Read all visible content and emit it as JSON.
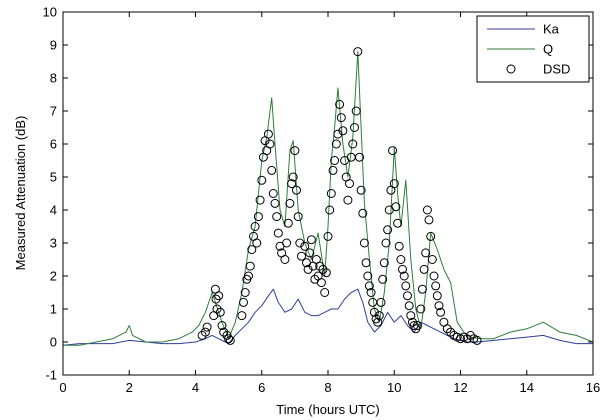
{
  "chart_data": {
    "type": "line",
    "xlabel": "Time (hours UTC)",
    "ylabel": "Measured Attenuation (dB)",
    "xlim": [
      0,
      16
    ],
    "ylim": [
      -1,
      10
    ],
    "xticks": [
      0,
      2,
      4,
      6,
      8,
      10,
      12,
      14,
      16
    ],
    "yticks": [
      -1,
      0,
      1,
      2,
      3,
      4,
      5,
      6,
      7,
      8,
      9,
      10
    ],
    "grid": false,
    "legend_position": "top-right",
    "series": [
      {
        "name": "Ka",
        "style": "line",
        "color": "#2e3f9e",
        "x": [
          0,
          0.5,
          1,
          1.5,
          2,
          2.5,
          3,
          3.5,
          4,
          4.3,
          4.5,
          4.7,
          4.9,
          5.0,
          5.2,
          5.4,
          5.6,
          5.8,
          6.0,
          6.2,
          6.35,
          6.5,
          6.7,
          6.9,
          7.1,
          7.3,
          7.5,
          7.7,
          7.9,
          8.1,
          8.3,
          8.5,
          8.7,
          8.9,
          9.05,
          9.2,
          9.4,
          9.6,
          9.8,
          10.0,
          10.2,
          10.4,
          10.6,
          10.8,
          11.0,
          11.2,
          11.4,
          11.6,
          11.8,
          12.0,
          12.2,
          12.5,
          13.0,
          13.5,
          14.0,
          14.5,
          15.0,
          15.5,
          16.0
        ],
        "y": [
          -0.1,
          -0.05,
          -0.05,
          -0.05,
          0.05,
          0.0,
          -0.05,
          -0.05,
          0.0,
          0.1,
          0.2,
          0.1,
          0.0,
          -0.05,
          0.2,
          0.4,
          0.6,
          0.9,
          1.1,
          1.4,
          1.6,
          1.2,
          0.9,
          1.0,
          1.3,
          0.9,
          0.8,
          0.8,
          0.9,
          1.0,
          1.0,
          1.3,
          1.5,
          1.6,
          1.2,
          0.6,
          0.3,
          0.5,
          0.9,
          0.6,
          0.8,
          0.5,
          0.3,
          0.6,
          0.5,
          0.4,
          0.3,
          0.2,
          0.1,
          0.05,
          0.0,
          0.0,
          0.05,
          0.1,
          0.15,
          0.2,
          0.05,
          -0.05,
          -0.05
        ]
      },
      {
        "name": "Q",
        "style": "line",
        "color": "#2f7d3a",
        "x": [
          0,
          0.5,
          1,
          1.5,
          1.9,
          2.0,
          2.1,
          2.5,
          3,
          3.5,
          3.9,
          4.1,
          4.3,
          4.5,
          4.6,
          4.8,
          5.0,
          5.2,
          5.4,
          5.6,
          5.8,
          6.0,
          6.15,
          6.3,
          6.4,
          6.55,
          6.7,
          6.85,
          6.95,
          7.1,
          7.3,
          7.5,
          7.7,
          7.9,
          8.0,
          8.1,
          8.2,
          8.3,
          8.45,
          8.6,
          8.75,
          8.9,
          9.0,
          9.1,
          9.25,
          9.4,
          9.55,
          9.7,
          9.85,
          10.0,
          10.1,
          10.2,
          10.35,
          10.5,
          10.65,
          10.8,
          10.95,
          11.1,
          11.3,
          11.5,
          11.7,
          11.9,
          12.1,
          12.3,
          12.6,
          13.0,
          13.5,
          14.0,
          14.5,
          15.0,
          15.5,
          16.0
        ],
        "y": [
          -0.1,
          -0.1,
          0.0,
          0.1,
          0.3,
          0.5,
          0.2,
          0.0,
          0.0,
          0.1,
          0.3,
          0.5,
          0.9,
          1.5,
          1.2,
          0.6,
          0.1,
          0.6,
          1.5,
          2.8,
          3.5,
          5.5,
          6.2,
          7.4,
          6.0,
          4.0,
          3.5,
          5.8,
          6.1,
          4.0,
          3.0,
          2.5,
          3.3,
          2.0,
          3.5,
          5.5,
          6.5,
          7.7,
          6.0,
          5.0,
          6.2,
          8.8,
          6.5,
          4.2,
          2.5,
          1.0,
          0.6,
          1.5,
          3.0,
          5.9,
          4.5,
          3.5,
          4.9,
          2.5,
          1.0,
          0.4,
          1.5,
          3.3,
          2.8,
          2.2,
          1.8,
          0.6,
          0.3,
          0.15,
          0.1,
          0.1,
          0.3,
          0.4,
          0.6,
          0.3,
          0.2,
          0.0
        ]
      },
      {
        "name": "DSD",
        "style": "markers",
        "marker": "open-circle",
        "color": "#000000",
        "x": [
          4.2,
          4.3,
          4.35,
          4.55,
          4.6,
          4.62,
          4.65,
          4.7,
          4.75,
          4.8,
          4.85,
          4.95,
          5.0,
          5.05,
          5.4,
          5.45,
          5.5,
          5.55,
          5.6,
          5.65,
          5.7,
          5.75,
          5.8,
          5.85,
          5.9,
          5.95,
          6.0,
          6.05,
          6.1,
          6.15,
          6.2,
          6.25,
          6.3,
          6.35,
          6.4,
          6.45,
          6.5,
          6.55,
          6.6,
          6.7,
          6.75,
          6.8,
          6.85,
          6.9,
          6.95,
          7.0,
          7.05,
          7.1,
          7.15,
          7.2,
          7.3,
          7.35,
          7.4,
          7.45,
          7.5,
          7.55,
          7.6,
          7.65,
          7.7,
          7.75,
          7.8,
          7.85,
          7.9,
          7.95,
          8.0,
          8.05,
          8.1,
          8.15,
          8.2,
          8.25,
          8.3,
          8.35,
          8.4,
          8.45,
          8.5,
          8.55,
          8.6,
          8.65,
          8.7,
          8.75,
          8.8,
          8.85,
          8.9,
          8.95,
          9.0,
          9.05,
          9.1,
          9.15,
          9.2,
          9.25,
          9.3,
          9.35,
          9.4,
          9.45,
          9.5,
          9.55,
          9.6,
          9.65,
          9.7,
          9.75,
          9.8,
          9.85,
          9.9,
          9.95,
          10.0,
          10.05,
          10.1,
          10.15,
          10.2,
          10.25,
          10.3,
          10.35,
          10.4,
          10.45,
          10.5,
          10.55,
          10.6,
          10.65,
          10.7,
          10.8,
          10.85,
          10.9,
          10.95,
          11.0,
          11.05,
          11.1,
          11.15,
          11.2,
          11.25,
          11.3,
          11.35,
          11.4,
          11.5,
          11.6,
          11.7,
          11.8,
          11.9,
          12.0,
          12.1,
          12.2,
          12.3,
          12.4,
          12.5
        ],
        "y": [
          0.2,
          0.3,
          0.45,
          0.8,
          1.6,
          1.3,
          1.0,
          1.4,
          0.9,
          0.5,
          0.3,
          0.2,
          0.1,
          0.05,
          0.8,
          1.2,
          1.5,
          1.9,
          2.0,
          2.3,
          2.8,
          3.2,
          3.5,
          3.0,
          3.8,
          4.3,
          4.9,
          5.6,
          6.1,
          5.8,
          6.3,
          6.0,
          5.2,
          4.5,
          4.2,
          3.8,
          3.3,
          2.9,
          2.7,
          2.5,
          3.0,
          3.6,
          4.2,
          4.8,
          5.0,
          5.8,
          4.6,
          3.8,
          3.0,
          2.6,
          2.9,
          2.4,
          2.2,
          2.7,
          3.1,
          2.3,
          1.9,
          2.5,
          2.0,
          2.3,
          1.8,
          2.2,
          1.5,
          2.1,
          3.2,
          4.0,
          4.5,
          5.2,
          5.5,
          6.0,
          6.3,
          7.2,
          6.8,
          6.4,
          5.5,
          5.0,
          4.3,
          4.8,
          5.6,
          6.0,
          6.5,
          7.0,
          8.8,
          5.6,
          4.6,
          3.9,
          3.0,
          2.4,
          2.0,
          1.7,
          1.5,
          1.2,
          0.9,
          0.7,
          0.6,
          0.8,
          1.2,
          1.9,
          2.4,
          3.0,
          3.4,
          4.0,
          4.6,
          5.8,
          4.8,
          4.1,
          3.6,
          2.9,
          2.5,
          2.2,
          2.0,
          1.7,
          1.4,
          1.1,
          0.8,
          0.6,
          0.5,
          0.4,
          0.5,
          1.0,
          1.6,
          2.2,
          2.7,
          4.0,
          3.7,
          3.2,
          2.5,
          2.0,
          1.7,
          1.4,
          1.1,
          0.9,
          0.6,
          0.4,
          0.3,
          0.2,
          0.15,
          0.1,
          0.15,
          0.1,
          0.2,
          0.1,
          0.05
        ]
      }
    ]
  }
}
